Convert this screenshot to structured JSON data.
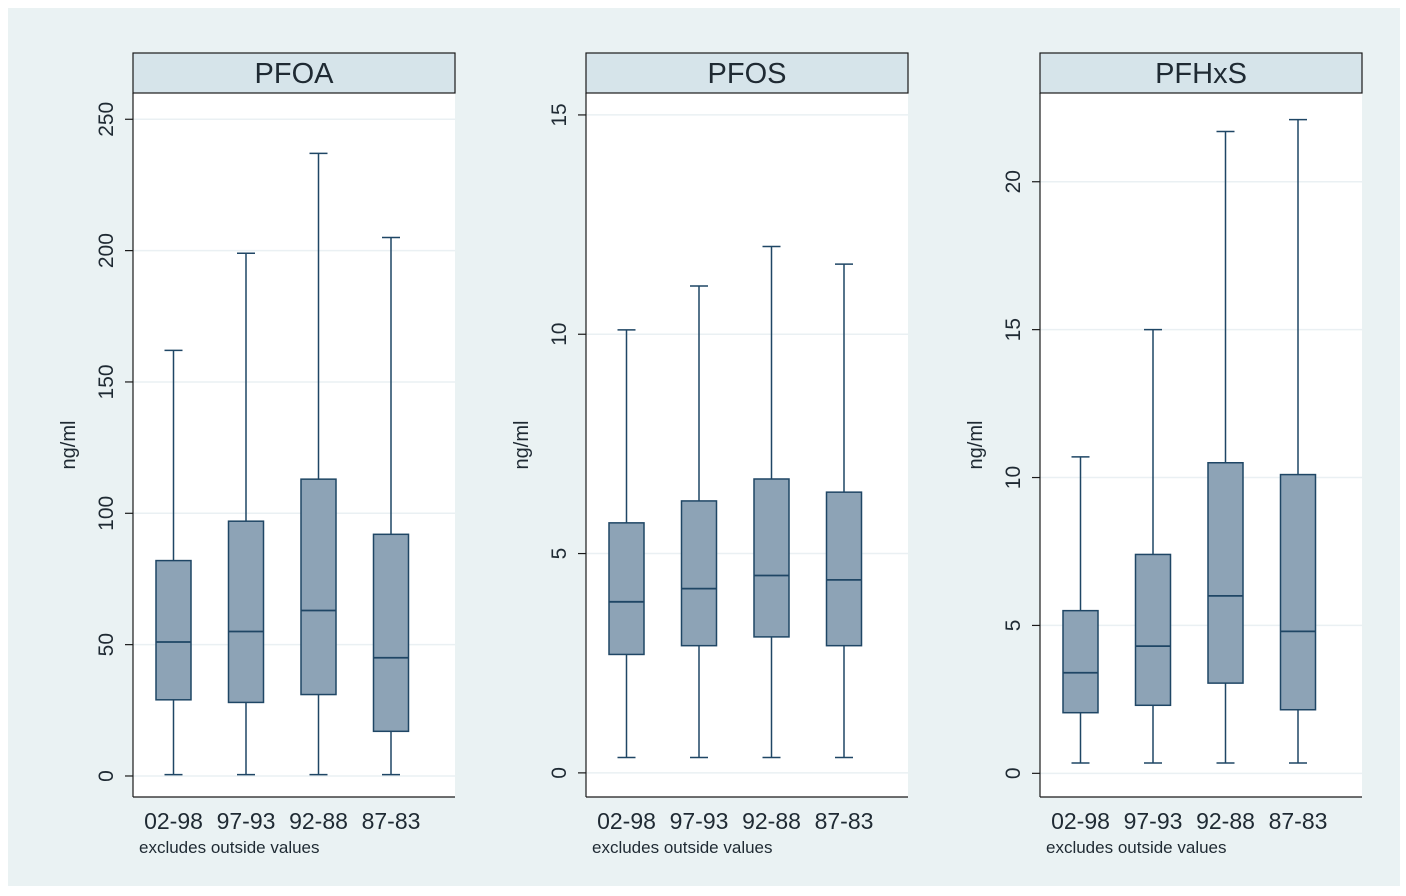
{
  "chart_data": [
    {
      "type": "boxplot",
      "title": "PFOA",
      "ylabel": "ng/ml",
      "note": "excludes outside values",
      "categories": [
        "02-98",
        "97-93",
        "92-88",
        "87-83"
      ],
      "yticks": [
        0,
        50,
        100,
        150,
        200,
        250
      ],
      "ylim": [
        -8,
        260
      ],
      "boxes": [
        {
          "min": 0.5,
          "q1": 29,
          "median": 51,
          "q3": 82,
          "max": 162
        },
        {
          "min": 0.5,
          "q1": 28,
          "median": 55,
          "q3": 97,
          "max": 199
        },
        {
          "min": 0.5,
          "q1": 31,
          "median": 63,
          "q3": 113,
          "max": 237
        },
        {
          "min": 0.5,
          "q1": 17,
          "median": 45,
          "q3": 92,
          "max": 205
        }
      ],
      "colors": {
        "box": "#8da3b6",
        "line": "#1f4665",
        "grid": "#eaf0f3"
      }
    },
    {
      "type": "boxplot",
      "title": "PFOS",
      "ylabel": "ng/ml",
      "note": "excludes outside values",
      "categories": [
        "02-98",
        "97-93",
        "92-88",
        "87-83"
      ],
      "yticks": [
        0,
        5,
        10,
        15
      ],
      "ylim": [
        -0.55,
        15.5
      ],
      "boxes": [
        {
          "min": 0.35,
          "q1": 2.7,
          "median": 3.9,
          "q3": 5.7,
          "max": 10.1
        },
        {
          "min": 0.35,
          "q1": 2.9,
          "median": 4.2,
          "q3": 6.2,
          "max": 11.1
        },
        {
          "min": 0.35,
          "q1": 3.1,
          "median": 4.5,
          "q3": 6.7,
          "max": 12.0
        },
        {
          "min": 0.35,
          "q1": 2.9,
          "median": 4.4,
          "q3": 6.4,
          "max": 11.6
        }
      ],
      "colors": {
        "box": "#8da3b6",
        "line": "#1f4665",
        "grid": "#eaf0f3"
      }
    },
    {
      "type": "boxplot",
      "title": "PFHxS",
      "ylabel": "ng/ml",
      "note": "excludes outside values",
      "categories": [
        "02-98",
        "97-93",
        "92-88",
        "87-83"
      ],
      "yticks": [
        0,
        5,
        10,
        15,
        20
      ],
      "ylim": [
        -0.8,
        23
      ],
      "boxes": [
        {
          "min": 0.35,
          "q1": 2.05,
          "median": 3.4,
          "q3": 5.5,
          "max": 10.7
        },
        {
          "min": 0.35,
          "q1": 2.3,
          "median": 4.3,
          "q3": 7.4,
          "max": 15.0
        },
        {
          "min": 0.35,
          "q1": 3.05,
          "median": 6.0,
          "q3": 10.5,
          "max": 21.7
        },
        {
          "min": 0.35,
          "q1": 2.15,
          "median": 4.8,
          "q3": 10.1,
          "max": 22.1
        }
      ],
      "colors": {
        "box": "#8da3b6",
        "line": "#1f4665",
        "grid": "#eaf0f3"
      }
    }
  ]
}
